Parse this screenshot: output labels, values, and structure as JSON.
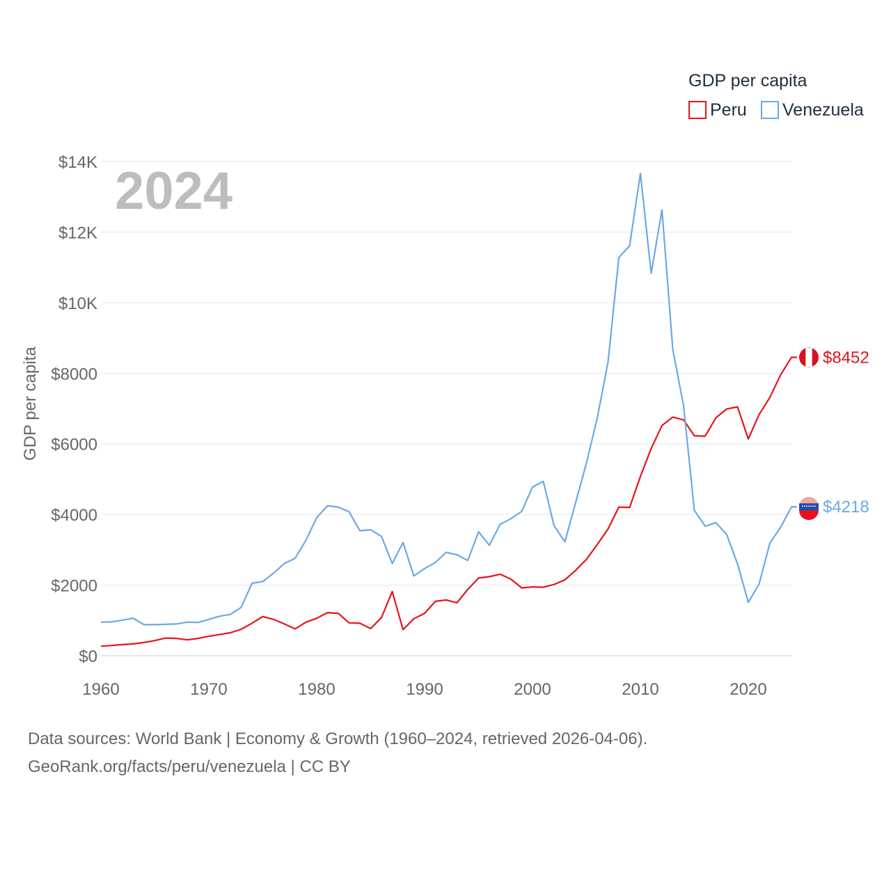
{
  "chart_data": {
    "type": "line",
    "current_year": "2024",
    "ylabel": "GDP per capita",
    "xlabel": "",
    "legend_title": "GDP per capita",
    "ylim": [
      0,
      14000
    ],
    "xlim": [
      1960,
      2024
    ],
    "y_ticks": [
      {
        "value": 0,
        "label": "$0"
      },
      {
        "value": 2000,
        "label": "$2000"
      },
      {
        "value": 4000,
        "label": "$4000"
      },
      {
        "value": 6000,
        "label": "$6000"
      },
      {
        "value": 8000,
        "label": "$8000"
      },
      {
        "value": 10000,
        "label": "$10K"
      },
      {
        "value": 12000,
        "label": "$12K"
      },
      {
        "value": 14000,
        "label": "$14K"
      }
    ],
    "x_ticks": [
      {
        "value": 1960,
        "label": "1960"
      },
      {
        "value": 1970,
        "label": "1970"
      },
      {
        "value": 1980,
        "label": "1980"
      },
      {
        "value": 1990,
        "label": "1990"
      },
      {
        "value": 2000,
        "label": "2000"
      },
      {
        "value": 2010,
        "label": "2010"
      },
      {
        "value": 2020,
        "label": "2020"
      }
    ],
    "x": [
      1960,
      1961,
      1962,
      1963,
      1964,
      1965,
      1966,
      1967,
      1968,
      1969,
      1970,
      1971,
      1972,
      1973,
      1974,
      1975,
      1976,
      1977,
      1978,
      1979,
      1980,
      1981,
      1982,
      1983,
      1984,
      1985,
      1986,
      1987,
      1988,
      1989,
      1990,
      1991,
      1992,
      1993,
      1994,
      1995,
      1996,
      1997,
      1998,
      1999,
      2000,
      2001,
      2002,
      2003,
      2004,
      2005,
      2006,
      2007,
      2008,
      2009,
      2010,
      2011,
      2012,
      2013,
      2014,
      2015,
      2016,
      2017,
      2018,
      2019,
      2020,
      2021,
      2022,
      2023,
      2024
    ],
    "series": [
      {
        "name": "Peru",
        "color": "#e8121b",
        "end_label": "$8452",
        "values": [
          270,
          290,
          315,
          335,
          375,
          430,
          500,
          490,
          450,
          490,
          550,
          600,
          650,
          750,
          920,
          1110,
          1030,
          900,
          760,
          950,
          1060,
          1220,
          1200,
          930,
          920,
          770,
          1080,
          1820,
          740,
          1050,
          1200,
          1540,
          1580,
          1500,
          1880,
          2200,
          2240,
          2310,
          2170,
          1920,
          1950,
          1940,
          2020,
          2150,
          2420,
          2730,
          3150,
          3590,
          4210,
          4200,
          5080,
          5870,
          6520,
          6760,
          6680,
          6230,
          6220,
          6740,
          6990,
          7050,
          6140,
          6830,
          7320,
          7960,
          8452
        ]
      },
      {
        "name": "Venezuela",
        "color": "#6ba8e5",
        "end_label": "$4218",
        "values": [
          950,
          960,
          1010,
          1060,
          880,
          880,
          890,
          900,
          950,
          940,
          1030,
          1120,
          1170,
          1370,
          2050,
          2100,
          2340,
          2610,
          2760,
          3270,
          3910,
          4250,
          4210,
          4080,
          3540,
          3570,
          3380,
          2610,
          3210,
          2260,
          2470,
          2640,
          2930,
          2860,
          2700,
          3510,
          3130,
          3720,
          3880,
          4090,
          4780,
          4940,
          3680,
          3230,
          4340,
          5460,
          6730,
          8320,
          11280,
          11610,
          13660,
          10830,
          12630,
          8680,
          7080,
          4120,
          3670,
          3770,
          3430,
          2600,
          1510,
          2030,
          3190,
          3640,
          4218
        ]
      }
    ]
  },
  "source": {
    "line1": "Data sources: World Bank | Economy & Growth (1960–2024, retrieved 2026-04-06).",
    "line2": "GeoRank.org/facts/peru/venezuela | CC BY"
  }
}
